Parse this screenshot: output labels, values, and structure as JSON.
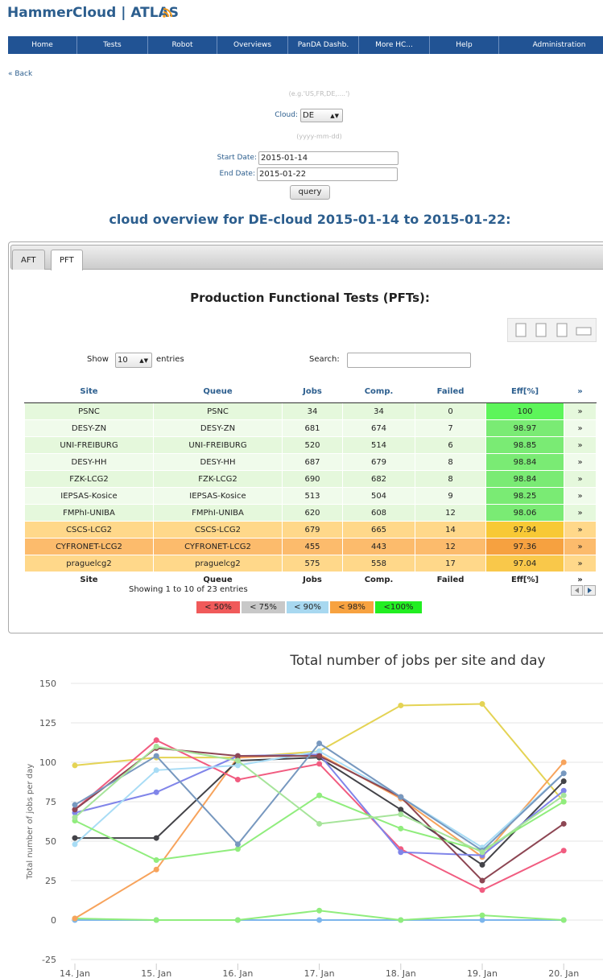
{
  "header": {
    "title": "HammerCloud | ATLAS"
  },
  "nav": [
    "Home",
    "Tests",
    "Robot",
    "Overviews",
    "PanDA Dashb.",
    "More HC...",
    "Help",
    "Administration"
  ],
  "back": "« Back",
  "form": {
    "cloud_hint": "(e.g.'US,FR,DE,....')",
    "cloud_label": "Cloud:",
    "cloud_value": "DE",
    "date_hint": "(yyyy-mm-dd)",
    "start_label": "Start Date:",
    "start_value": "2015-01-14",
    "end_label": "End Date:",
    "end_value": "2015-01-22",
    "button": "query"
  },
  "heading": "cloud overview for DE-cloud 2015-01-14 to 2015-01-22:",
  "tabs": [
    "AFT",
    "PFT"
  ],
  "table_title": "Production Functional Tests (PFTs):",
  "controls": {
    "show": "Show",
    "entries_value": "10",
    "entries": "entries",
    "search": "Search:"
  },
  "table": {
    "header": [
      "Site",
      "Queue",
      "Jobs",
      "Comp.",
      "Failed",
      "Eff[%]",
      "»"
    ],
    "rows": [
      [
        "PSNC",
        "PSNC",
        "34",
        "34",
        "0",
        "100",
        "»"
      ],
      [
        "DESY-ZN",
        "DESY-ZN",
        "681",
        "674",
        "7",
        "98.97",
        "»"
      ],
      [
        "UNI-FREIBURG",
        "UNI-FREIBURG",
        "520",
        "514",
        "6",
        "98.85",
        "»"
      ],
      [
        "DESY-HH",
        "DESY-HH",
        "687",
        "679",
        "8",
        "98.84",
        "»"
      ],
      [
        "FZK-LCG2",
        "FZK-LCG2",
        "690",
        "682",
        "8",
        "98.84",
        "»"
      ],
      [
        "IEPSAS-Kosice",
        "IEPSAS-Kosice",
        "513",
        "504",
        "9",
        "98.25",
        "»"
      ],
      [
        "FMPhI-UNIBA",
        "FMPhI-UNIBA",
        "620",
        "608",
        "12",
        "98.06",
        "»"
      ],
      [
        "CSCS-LCG2",
        "CSCS-LCG2",
        "679",
        "665",
        "14",
        "97.94",
        "»"
      ],
      [
        "CYFRONET-LCG2",
        "CYFRONET-LCG2",
        "455",
        "443",
        "12",
        "97.36",
        "»"
      ],
      [
        "praguelcg2",
        "praguelcg2",
        "575",
        "558",
        "17",
        "97.04",
        "»"
      ]
    ],
    "footer": [
      "Site",
      "Queue",
      "Jobs",
      "Comp.",
      "Failed",
      "Eff[%]",
      "»"
    ]
  },
  "info": "Showing 1 to 10 of 23 entries",
  "legend": [
    {
      "label": "< 50%",
      "color": "#f05a5a"
    },
    {
      "label": "< 75%",
      "color": "#c8c8c8"
    },
    {
      "label": "< 90%",
      "color": "#a8d8f0"
    },
    {
      "label": "< 98%",
      "color": "#f7a240"
    },
    {
      "label": "<100%",
      "color": "#22ee22"
    }
  ],
  "chart_data": {
    "type": "line",
    "title": "Total number of jobs per site and day",
    "y_label": "Total number of jobs per day",
    "categories": [
      "14. Jan",
      "15. Jan",
      "16. Jan",
      "17. Jan",
      "18. Jan",
      "19. Jan",
      "20. Jan"
    ],
    "ylim": [
      -25,
      150
    ],
    "yticks": [
      -25,
      0,
      25,
      50,
      75,
      100,
      125,
      150
    ],
    "grid": true,
    "series": [
      {
        "color": "#e4d354",
        "values": [
          98,
          103,
          103,
          107,
          136,
          137,
          75
        ]
      },
      {
        "color": "#7cb5ec",
        "values": [
          0,
          0,
          0,
          0,
          0,
          0,
          0
        ]
      },
      {
        "color": "#90ed7d",
        "values": [
          1,
          0,
          0,
          6,
          0,
          3,
          0
        ]
      },
      {
        "color": "#f7a35c",
        "values": [
          1,
          32,
          103,
          105,
          77,
          40,
          100
        ]
      },
      {
        "color": "#434348",
        "values": [
          52,
          52,
          101,
          103,
          70,
          35,
          88
        ]
      },
      {
        "color": "#f15c80",
        "values": [
          70,
          114,
          89,
          99,
          45,
          19,
          44
        ]
      },
      {
        "color": "#8085e9",
        "values": [
          68,
          81,
          104,
          105,
          43,
          41,
          82
        ]
      },
      {
        "color": "#a8dcf5",
        "values": [
          48,
          95,
          98,
          107,
          78,
          46,
          93
        ]
      },
      {
        "color": "#90ed7d",
        "values": [
          63,
          38,
          45,
          79,
          58,
          44,
          75
        ]
      },
      {
        "color": "#8d4653",
        "values": [
          70,
          109,
          104,
          104,
          78,
          25,
          61
        ]
      },
      {
        "color": "#7798bf",
        "values": [
          73,
          104,
          48,
          112,
          78,
          44,
          93
        ]
      },
      {
        "color": "#a6e49a",
        "values": [
          65,
          110,
          101,
          61,
          67,
          43,
          79
        ]
      }
    ]
  }
}
